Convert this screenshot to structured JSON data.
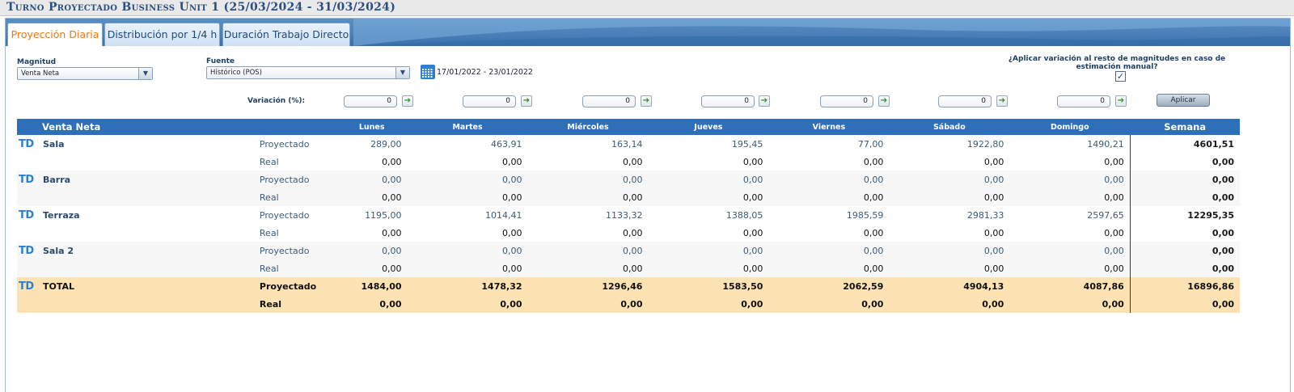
{
  "window": {
    "title": "Turno Proyectado Business Unit 1 (25/03/2024 - 31/03/2024)"
  },
  "tabs": [
    {
      "label": "Proyección Diaria",
      "active": true
    },
    {
      "label": "Distribución por 1/4 h",
      "active": false
    },
    {
      "label": "Duración Trabajo Directo",
      "active": false
    }
  ],
  "filters": {
    "magnitud_label": "Magnitud",
    "magnitud_value": "Venta Neta",
    "fuente_label": "Fuente",
    "fuente_value": "Histórico (POS)",
    "date_range": "17/01/2022 - 23/01/2022",
    "apply_question": "¿Aplicar variación al resto de magnitudes en caso de estimación manual?",
    "apply_checked": true
  },
  "variation": {
    "label": "Variación (%):",
    "values": [
      "0",
      "0",
      "0",
      "0",
      "0",
      "0",
      "0"
    ],
    "apply_button": "Aplicar"
  },
  "icons": {
    "calendar": "calendar-icon",
    "go": "apply-arrow-icon",
    "dropdown": "chevron-down-icon",
    "td": "td-icon"
  },
  "colors": {
    "header_bg": "#2e6fba",
    "total_bg": "#fde2b4",
    "active_tab_text": "#e67a12",
    "title": "#2a4f82"
  },
  "table": {
    "headers": [
      "Venta Neta",
      "",
      "Lunes",
      "Martes",
      "Miércoles",
      "Jueves",
      "Viernes",
      "Sábado",
      "Domingo",
      "Semana"
    ],
    "td_icon_text": "TD",
    "groups": [
      {
        "name": "Sala",
        "rows": [
          {
            "kind": "Proyectado",
            "values": [
              "289,00",
              "463,91",
              "163,14",
              "195,45",
              "77,00",
              "1922,80",
              "1490,21"
            ],
            "week": "4601,51"
          },
          {
            "kind": "Real",
            "values": [
              "0,00",
              "0,00",
              "0,00",
              "0,00",
              "0,00",
              "0,00",
              "0,00"
            ],
            "week": "0,00"
          }
        ]
      },
      {
        "name": "Barra",
        "rows": [
          {
            "kind": "Proyectado",
            "values": [
              "0,00",
              "0,00",
              "0,00",
              "0,00",
              "0,00",
              "0,00",
              "0,00"
            ],
            "week": "0,00"
          },
          {
            "kind": "Real",
            "values": [
              "0,00",
              "0,00",
              "0,00",
              "0,00",
              "0,00",
              "0,00",
              "0,00"
            ],
            "week": "0,00"
          }
        ]
      },
      {
        "name": "Terraza",
        "rows": [
          {
            "kind": "Proyectado",
            "values": [
              "1195,00",
              "1014,41",
              "1133,32",
              "1388,05",
              "1985,59",
              "2981,33",
              "2597,65"
            ],
            "week": "12295,35"
          },
          {
            "kind": "Real",
            "values": [
              "0,00",
              "0,00",
              "0,00",
              "0,00",
              "0,00",
              "0,00",
              "0,00"
            ],
            "week": "0,00"
          }
        ]
      },
      {
        "name": "Sala 2",
        "rows": [
          {
            "kind": "Proyectado",
            "values": [
              "0,00",
              "0,00",
              "0,00",
              "0,00",
              "0,00",
              "0,00",
              "0,00"
            ],
            "week": "0,00"
          },
          {
            "kind": "Real",
            "values": [
              "0,00",
              "0,00",
              "0,00",
              "0,00",
              "0,00",
              "0,00",
              "0,00"
            ],
            "week": "0,00"
          }
        ]
      },
      {
        "name": "TOTAL",
        "total": true,
        "rows": [
          {
            "kind": "Proyectado",
            "values": [
              "1484,00",
              "1478,32",
              "1296,46",
              "1583,50",
              "2062,59",
              "4904,13",
              "4087,86"
            ],
            "week": "16896,86"
          },
          {
            "kind": "Real",
            "values": [
              "0,00",
              "0,00",
              "0,00",
              "0,00",
              "0,00",
              "0,00",
              "0,00"
            ],
            "week": "0,00"
          }
        ]
      }
    ]
  }
}
